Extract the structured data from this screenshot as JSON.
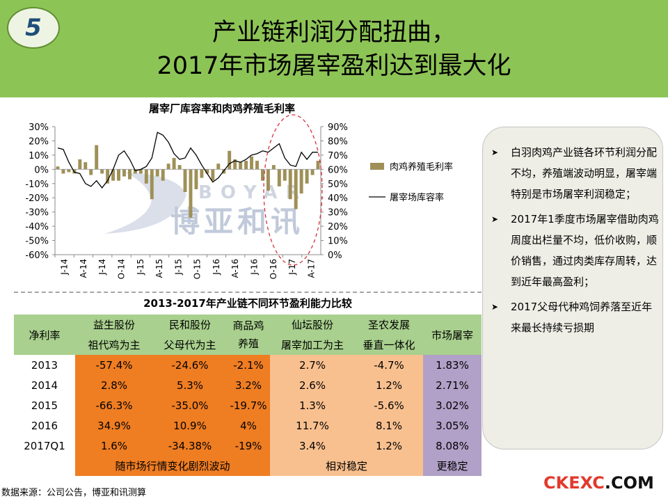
{
  "header": {
    "badge": "5",
    "title_line1": "产业链利润分配扭曲，",
    "title_line2": "2017年市场屠宰盈利达到最大化"
  },
  "chart_data": {
    "type": "bar+line",
    "title": "屠宰厂库容率和肉鸡养殖毛利率",
    "x_tick_labels": [
      "J-14",
      "A-14",
      "J-14",
      "O-14",
      "J-15",
      "A-15",
      "J-15",
      "O-15",
      "J-16",
      "A-16",
      "J-16",
      "O-16",
      "J-17",
      "A-17"
    ],
    "left_axis": {
      "ylim": [
        -60,
        30
      ],
      "ticks": [
        "30%",
        "20%",
        "10%",
        "0%",
        "-10%",
        "-20%",
        "-30%",
        "-40%",
        "-50%",
        "-60%"
      ]
    },
    "right_axis": {
      "ylim": [
        0,
        90
      ],
      "ticks": [
        "90%",
        "80%",
        "70%",
        "60%",
        "50%",
        "40%",
        "30%",
        "20%",
        "10%",
        "0%"
      ]
    },
    "series": [
      {
        "name": "肉鸡养殖毛利率",
        "type": "bar",
        "axis": "left",
        "color": "#9e9058",
        "values": [
          2,
          -3,
          -2,
          -3,
          7,
          5,
          -4,
          17,
          -3,
          -10,
          -8,
          -8,
          -5,
          -7,
          -3,
          -3,
          -10,
          -21,
          -5,
          -8,
          4,
          8,
          3,
          -16,
          -34,
          -14,
          -6,
          -3,
          -8,
          4,
          -3,
          13,
          7,
          5,
          6,
          9,
          6,
          -8,
          -15,
          3,
          -12,
          -8,
          -21,
          -28,
          -17,
          -10,
          -4,
          6
        ]
      },
      {
        "name": "屠宰场库容率",
        "type": "line",
        "axis": "right",
        "color": "#000000",
        "values": [
          75,
          74,
          65,
          58,
          57,
          50,
          48,
          52,
          47,
          52,
          60,
          70,
          73,
          67,
          59,
          60,
          62,
          68,
          86,
          84,
          79,
          71,
          67,
          68,
          75,
          70,
          63,
          57,
          51,
          54,
          59,
          64,
          66,
          65,
          67,
          70,
          71,
          73,
          72,
          75,
          78,
          68,
          63,
          62,
          72,
          67,
          72,
          72
        ]
      }
    ],
    "legend": [
      "肉鸡养殖毛利率",
      "屠宰场库容率"
    ],
    "watermark": {
      "latin": "BOYAR",
      "cn": "博亚和讯"
    }
  },
  "table": {
    "title": "2013-2017年产业链不同环节盈利能力比较",
    "corner": "净利率",
    "companies": [
      {
        "name": "益生股份",
        "role": "祖代鸡为主"
      },
      {
        "name": "民和股份",
        "role": "父母代为主"
      },
      {
        "name": "商品鸡养殖",
        "role": ""
      },
      {
        "name": "仙坛股份",
        "role": "屠宰加工为主"
      },
      {
        "name": "圣农发展",
        "role": "垂直一体化"
      }
    ],
    "market_header": "市场屠宰",
    "rows": [
      {
        "year": "2013",
        "values": [
          "-57.4%",
          "-24.6%",
          "-2.1%",
          "2.7%",
          "-4.7%"
        ],
        "market": "1.83%"
      },
      {
        "year": "2014",
        "values": [
          "2.8%",
          "5.3%",
          "3.2%",
          "2.6%",
          "1.2%"
        ],
        "market": "2.71%"
      },
      {
        "year": "2015",
        "values": [
          "-66.3%",
          "-35.0%",
          "-19.7%",
          "1.3%",
          "-5.6%"
        ],
        "market": "3.02%"
      },
      {
        "year": "2016",
        "values": [
          "34.9%",
          "10.9%",
          "4%",
          "11.7%",
          "8.1%"
        ],
        "market": "3.05%"
      },
      {
        "year": "2017Q1",
        "values": [
          "1.6%",
          "-34.38%",
          "-19%",
          "3.4%",
          "1.2%"
        ],
        "market": "8.08%"
      }
    ],
    "footer": {
      "volatile": "随市场行情变化剧烈波动",
      "stable": "相对稳定",
      "more_stable": "更稳定"
    }
  },
  "bullets": [
    "白羽肉鸡产业链各环节利润分配不均，养殖端波动明显，屠宰端特别是市场屠宰利润稳定；",
    "2017年1季度市场屠宰借助肉鸡周度出栏量不均，低价收购，顺价销售，通过肉类库存周转，达到近年最高盈利；",
    "2017父母代种鸡饲养落至近年来最长持续亏损期"
  ],
  "source": "数据来源：公司公告，博亚和讯测算",
  "logo": {
    "part1": "CKEXC",
    "part2": ".COM"
  },
  "colors": {
    "header_bg": "#8dc456",
    "bar": "#9e9058",
    "orange": "#ef7d22",
    "peach": "#f9c08f",
    "purple": "#b1a0c7",
    "table_header": "#a9d08e"
  }
}
